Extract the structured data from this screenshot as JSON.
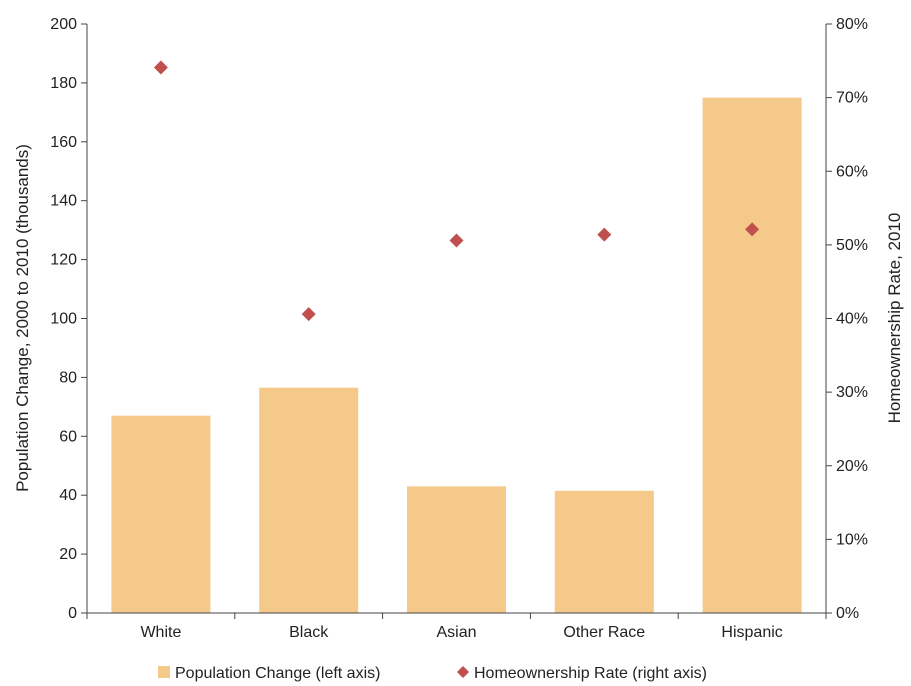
{
  "chart_data": {
    "type": "bar",
    "categories": [
      "White",
      "Black",
      "Asian",
      "Other Race",
      "Hispanic"
    ],
    "series": [
      {
        "name": "Population Change (left axis)",
        "type": "bar",
        "axis": "left",
        "color": "#F5C98A",
        "values": [
          67,
          76.5,
          43,
          41.5,
          175
        ]
      },
      {
        "name": "Homeownership Rate (right axis)",
        "type": "scatter",
        "marker": "diamond",
        "axis": "right",
        "color": "#C0504D",
        "values": [
          0.741,
          0.406,
          0.506,
          0.514,
          0.521
        ]
      }
    ],
    "ylabel": "Population Change, 2000 to 2010 (thousands)",
    "y2label": "Homeownership Rate, 2010",
    "ylim": [
      0,
      200
    ],
    "y2lim": [
      0,
      0.8
    ],
    "yticks": [
      "0",
      "20",
      "40",
      "60",
      "80",
      "100",
      "120",
      "140",
      "160",
      "180",
      "200"
    ],
    "y2ticks": [
      "0%",
      "10%",
      "20%",
      "30%",
      "40%",
      "50%",
      "60%",
      "70%",
      "80%"
    ],
    "grid": false,
    "legend_position": "bottom"
  }
}
